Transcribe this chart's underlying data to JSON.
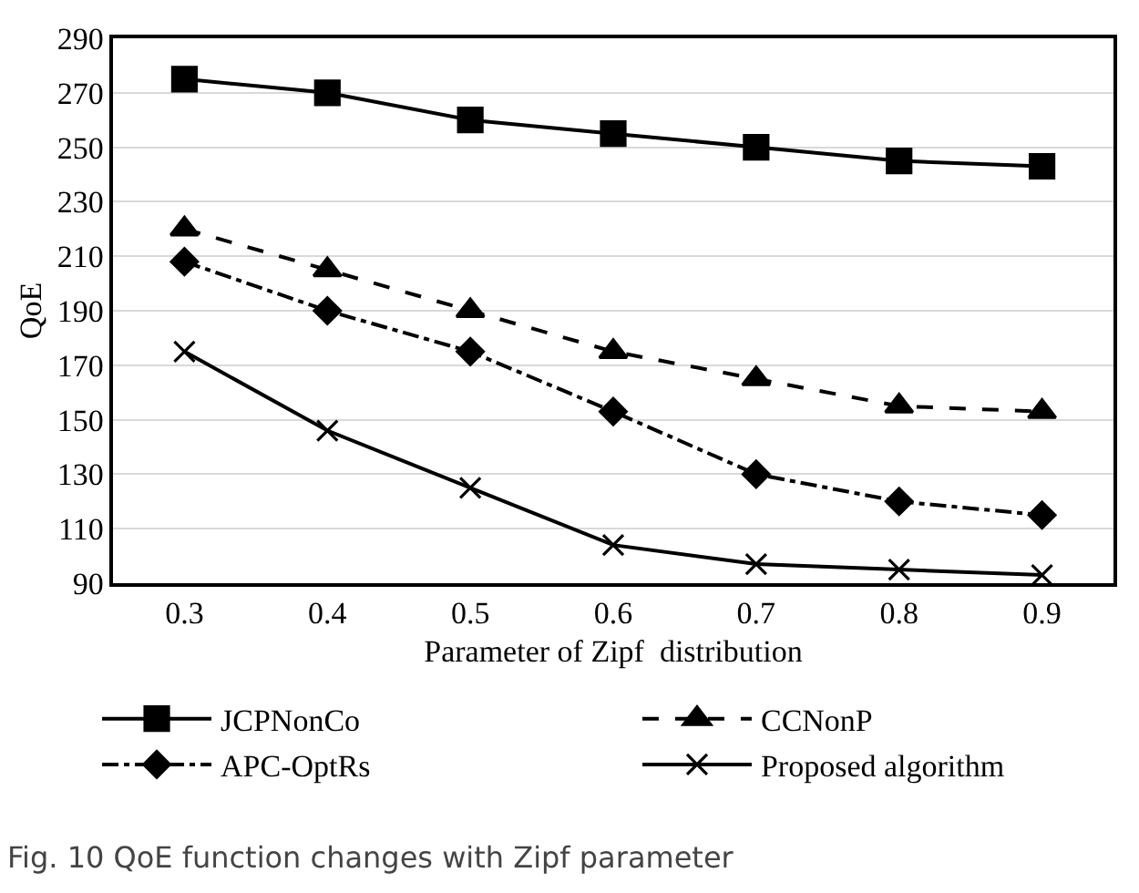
{
  "chart_data": {
    "type": "line",
    "xlabel": "Parameter of Zipf  distribution",
    "ylabel": "QoE",
    "categories": [
      "0.3",
      "0.4",
      "0.5",
      "0.6",
      "0.7",
      "0.8",
      "0.9"
    ],
    "series": [
      {
        "name": "JCPNonCo",
        "color": "#000000",
        "marker": "square",
        "line_style": "solid",
        "values": [
          275,
          270,
          260,
          255,
          250,
          245,
          243
        ]
      },
      {
        "name": "CCNonP",
        "color": "#000000",
        "marker": "triangle",
        "line_style": "dashed",
        "values": [
          220,
          205,
          190,
          175,
          165,
          155,
          153
        ]
      },
      {
        "name": "APC-OptRs",
        "color": "#000000",
        "marker": "diamond",
        "line_style": "dashdot",
        "values": [
          208,
          190,
          175,
          153,
          130,
          120,
          115
        ]
      },
      {
        "name": "Proposed algorithm",
        "color": "#000000",
        "marker": "cross",
        "line_style": "solid",
        "values": [
          175,
          146,
          125,
          104,
          97,
          95,
          93
        ]
      }
    ],
    "ylim": [
      90,
      290
    ],
    "yticks": [
      90,
      110,
      130,
      150,
      170,
      190,
      210,
      230,
      250,
      270,
      290
    ],
    "grid": "y",
    "legend": "bottom",
    "annotations": [
      "Fig. 10 QoE function changes with Zipf parameter"
    ]
  }
}
